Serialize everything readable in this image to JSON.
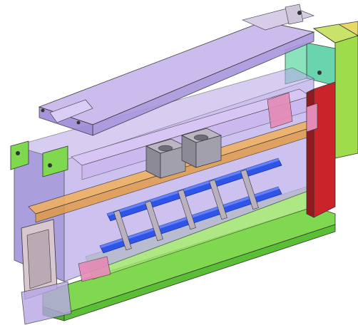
{
  "scene": {
    "background": "#ffffff",
    "outline": "#333333",
    "palette": {
      "housing": "#b7a6e6",
      "housing_dark": "#8f7fd0",
      "top_plate": "#c7b4ec",
      "green_frame": "#7fd84f",
      "green_dark": "#4fae2f",
      "teal_block": "#59d0a6",
      "orange_bar": "#f2b15b",
      "blue_roller": "#2f55e8",
      "blue_roller_light": "#6f8cff",
      "red_panel": "#c8242a",
      "pink_bracket": "#e58ab6",
      "gray_bracket": "#b9b2be",
      "motor": "#9e9aa8",
      "yellow_block": "#e8d86a"
    },
    "rollers": [
      1,
      2,
      3,
      4,
      5
    ]
  }
}
